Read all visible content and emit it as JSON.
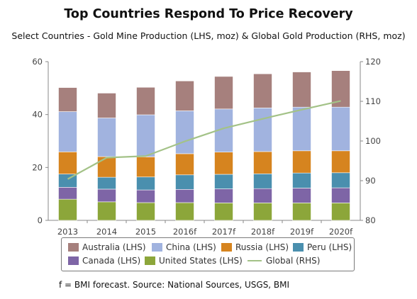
{
  "title": "Top Countries Respond To Price Recovery",
  "subtitle": "Select Countries - Gold Mine Production (LHS, moz) & Global Gold Production (RHS, moz)",
  "footnote": "f = BMI forecast. Source: National Sources, USGS, BMI",
  "chart_data": {
    "type": "bar",
    "stacked": true,
    "categories": [
      "2013",
      "2014",
      "2015",
      "2016f",
      "2017f",
      "2018f",
      "2019f",
      "2020f"
    ],
    "y_left": {
      "ticks": [
        "0",
        "20",
        "40",
        "60"
      ],
      "ylim": [
        0,
        60
      ]
    },
    "y_right": {
      "ticks": [
        "80",
        "90",
        "100",
        "110",
        "120"
      ],
      "ylim": [
        80,
        120
      ]
    },
    "series": [
      {
        "name": "United States (LHS)",
        "color": "#8ca63a",
        "axis": "left",
        "values": [
          8.0,
          7.0,
          6.7,
          6.7,
          6.6,
          6.6,
          6.6,
          6.6
        ]
      },
      {
        "name": "Canada (LHS)",
        "color": "#7e65a6",
        "axis": "left",
        "values": [
          4.5,
          4.8,
          4.8,
          5.0,
          5.3,
          5.4,
          5.6,
          5.7
        ]
      },
      {
        "name": "Peru (LHS)",
        "color": "#4a8fae",
        "axis": "left",
        "values": [
          5.0,
          4.5,
          4.9,
          5.5,
          5.5,
          5.6,
          5.7,
          5.7
        ]
      },
      {
        "name": "Russia (LHS)",
        "color": "#d6841f",
        "axis": "left",
        "values": [
          8.4,
          7.8,
          7.6,
          8.0,
          8.4,
          8.4,
          8.4,
          8.3
        ]
      },
      {
        "name": "China (LHS)",
        "color": "#a1b3df",
        "axis": "left",
        "values": [
          15.2,
          14.6,
          15.9,
          16.2,
          16.3,
          16.5,
          16.5,
          16.5
        ]
      },
      {
        "name": "Australia (LHS)",
        "color": "#a6807d",
        "axis": "left",
        "values": [
          9.1,
          9.4,
          10.4,
          11.3,
          12.3,
          12.9,
          13.3,
          13.8
        ]
      },
      {
        "name": "Global (RHS)",
        "color": "#a3c287",
        "axis": "right",
        "type": "line",
        "values": [
          90.4,
          95.8,
          96.2,
          99.9,
          103.2,
          105.6,
          107.9,
          110.1
        ]
      }
    ],
    "legend": {
      "position": "bottom",
      "order": [
        "Australia (LHS)",
        "China (LHS)",
        "Russia (LHS)",
        "Peru (LHS)",
        "Canada (LHS)",
        "United States (LHS)",
        "Global (RHS)"
      ]
    },
    "grid": false
  }
}
